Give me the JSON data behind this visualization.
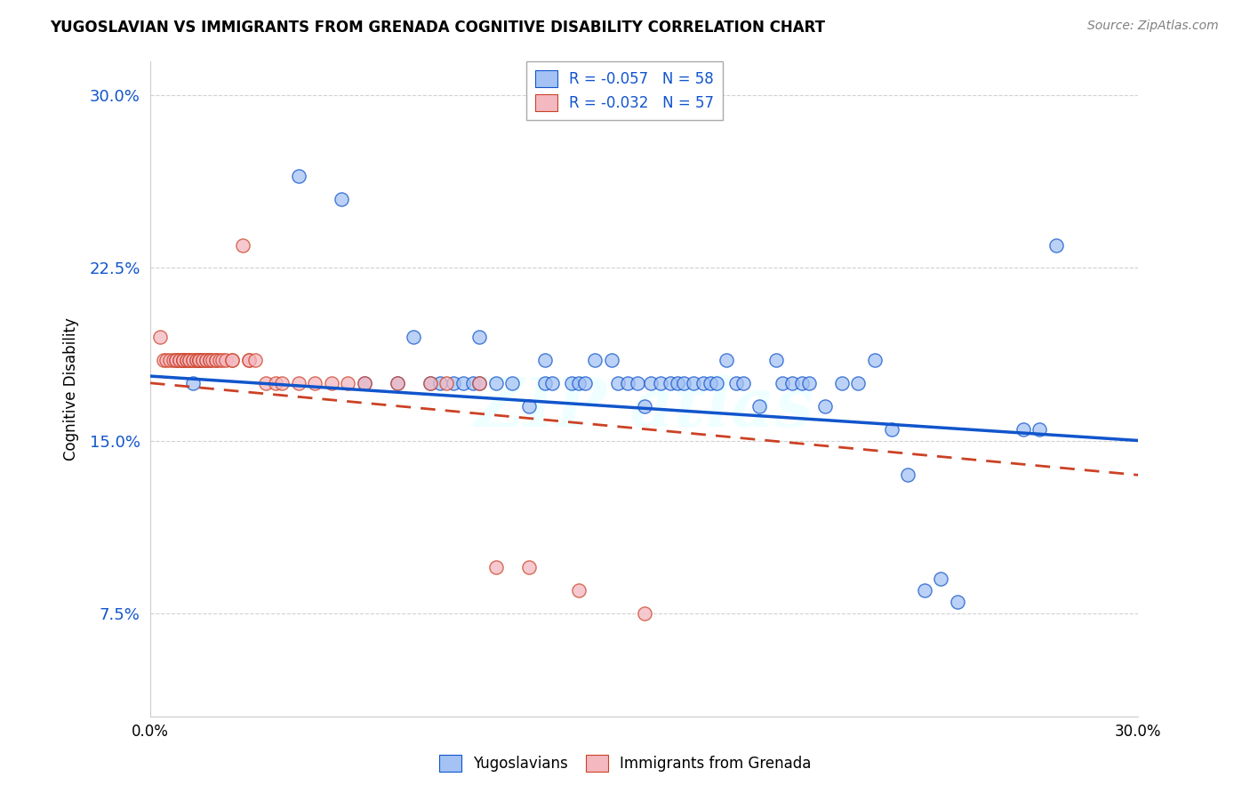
{
  "title": "YUGOSLAVIAN VS IMMIGRANTS FROM GRENADA COGNITIVE DISABILITY CORRELATION CHART",
  "source": "Source: ZipAtlas.com",
  "ylabel": "Cognitive Disability",
  "xlim": [
    0.0,
    0.3
  ],
  "ylim": [
    0.03,
    0.315
  ],
  "yticks": [
    0.075,
    0.15,
    0.225,
    0.3
  ],
  "ytick_labels": [
    "7.5%",
    "15.0%",
    "22.5%",
    "30.0%"
  ],
  "legend_r1": "R = -0.057   N = 58",
  "legend_r2": "R = -0.032   N = 57",
  "blue_color": "#a4c2f4",
  "pink_color": "#f4b8c1",
  "blue_line_color": "#1155cc",
  "pink_line_color": "#cc4125",
  "blue_tick_color": "#1155cc",
  "watermark": "ZIP atlas",
  "blue_scatter_x": [
    0.013,
    0.045,
    0.058,
    0.065,
    0.075,
    0.08,
    0.085,
    0.088,
    0.092,
    0.095,
    0.098,
    0.1,
    0.1,
    0.105,
    0.11,
    0.115,
    0.12,
    0.12,
    0.122,
    0.128,
    0.13,
    0.132,
    0.135,
    0.14,
    0.142,
    0.145,
    0.148,
    0.15,
    0.152,
    0.155,
    0.158,
    0.16,
    0.162,
    0.165,
    0.168,
    0.17,
    0.172,
    0.175,
    0.178,
    0.18,
    0.185,
    0.19,
    0.192,
    0.195,
    0.198,
    0.2,
    0.205,
    0.21,
    0.215,
    0.22,
    0.225,
    0.23,
    0.235,
    0.24,
    0.245,
    0.265,
    0.27,
    0.275
  ],
  "blue_scatter_y": [
    0.175,
    0.265,
    0.255,
    0.175,
    0.175,
    0.195,
    0.175,
    0.175,
    0.175,
    0.175,
    0.175,
    0.195,
    0.175,
    0.175,
    0.175,
    0.165,
    0.185,
    0.175,
    0.175,
    0.175,
    0.175,
    0.175,
    0.185,
    0.185,
    0.175,
    0.175,
    0.175,
    0.165,
    0.175,
    0.175,
    0.175,
    0.175,
    0.175,
    0.175,
    0.175,
    0.175,
    0.175,
    0.185,
    0.175,
    0.175,
    0.165,
    0.185,
    0.175,
    0.175,
    0.175,
    0.175,
    0.165,
    0.175,
    0.175,
    0.185,
    0.155,
    0.135,
    0.085,
    0.09,
    0.08,
    0.155,
    0.155,
    0.235
  ],
  "pink_scatter_x": [
    0.003,
    0.004,
    0.005,
    0.006,
    0.007,
    0.008,
    0.008,
    0.009,
    0.009,
    0.01,
    0.01,
    0.01,
    0.011,
    0.011,
    0.012,
    0.012,
    0.013,
    0.013,
    0.014,
    0.014,
    0.015,
    0.015,
    0.015,
    0.016,
    0.016,
    0.017,
    0.017,
    0.018,
    0.018,
    0.019,
    0.02,
    0.02,
    0.021,
    0.022,
    0.023,
    0.025,
    0.025,
    0.028,
    0.03,
    0.03,
    0.032,
    0.035,
    0.038,
    0.04,
    0.045,
    0.05,
    0.055,
    0.06,
    0.065,
    0.075,
    0.085,
    0.09,
    0.1,
    0.105,
    0.115,
    0.13,
    0.15
  ],
  "pink_scatter_y": [
    0.195,
    0.185,
    0.185,
    0.185,
    0.185,
    0.185,
    0.185,
    0.185,
    0.185,
    0.185,
    0.185,
    0.185,
    0.185,
    0.185,
    0.185,
    0.185,
    0.185,
    0.185,
    0.185,
    0.185,
    0.185,
    0.185,
    0.185,
    0.185,
    0.185,
    0.185,
    0.185,
    0.185,
    0.185,
    0.185,
    0.185,
    0.185,
    0.185,
    0.185,
    0.185,
    0.185,
    0.185,
    0.235,
    0.185,
    0.185,
    0.185,
    0.175,
    0.175,
    0.175,
    0.175,
    0.175,
    0.175,
    0.175,
    0.175,
    0.175,
    0.175,
    0.175,
    0.175,
    0.095,
    0.095,
    0.085,
    0.075
  ],
  "blue_line_x0": 0.0,
  "blue_line_y0": 0.178,
  "blue_line_x1": 0.3,
  "blue_line_y1": 0.15,
  "pink_line_x0": 0.0,
  "pink_line_y0": 0.175,
  "pink_line_x1": 0.3,
  "pink_line_y1": 0.135
}
